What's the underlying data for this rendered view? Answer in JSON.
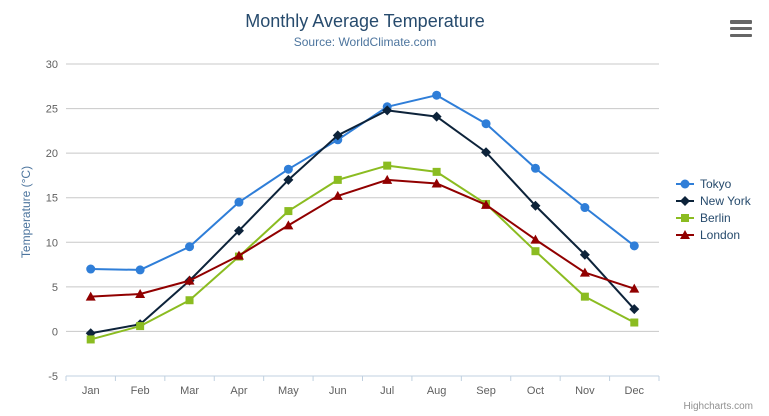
{
  "header": {
    "title": "Monthly Average Temperature",
    "subtitle": "Source: WorldClimate.com"
  },
  "credits": "Highcharts.com",
  "menu_icon": "hamburger-export-menu",
  "colors": {
    "title": "#274b6d",
    "subtitle": "#4d759e",
    "axis_title": "#4d759e",
    "axis_label": "#606060",
    "grid": "#c8c8c8",
    "axis_line": "#c0d0e0",
    "legend_text": "#274b6d",
    "credits": "#909090",
    "menu_icon": "#666666",
    "background": "#ffffff"
  },
  "chart_data": {
    "type": "line",
    "title": "Monthly Average Temperature",
    "subtitle": "Source: WorldClimate.com",
    "xlabel": "",
    "ylabel": "Temperature (°C)",
    "categories": [
      "Jan",
      "Feb",
      "Mar",
      "Apr",
      "May",
      "Jun",
      "Jul",
      "Aug",
      "Sep",
      "Oct",
      "Nov",
      "Dec"
    ],
    "ylim": [
      -5,
      30
    ],
    "ytick_step": 5,
    "grid": true,
    "legend_position": "right",
    "series": [
      {
        "name": "Tokyo",
        "color": "#2f7ed8",
        "marker": "circle",
        "values": [
          7.0,
          6.9,
          9.5,
          14.5,
          18.2,
          21.5,
          25.2,
          26.5,
          23.3,
          18.3,
          13.9,
          9.6
        ]
      },
      {
        "name": "New York",
        "color": "#0d233a",
        "marker": "diamond",
        "values": [
          -0.2,
          0.8,
          5.7,
          11.3,
          17.0,
          22.0,
          24.8,
          24.1,
          20.1,
          14.1,
          8.6,
          2.5
        ]
      },
      {
        "name": "Berlin",
        "color": "#8bbc21",
        "marker": "square",
        "values": [
          -0.9,
          0.6,
          3.5,
          8.4,
          13.5,
          17.0,
          18.6,
          17.9,
          14.3,
          9.0,
          3.9,
          1.0
        ]
      },
      {
        "name": "London",
        "color": "#910000",
        "marker": "triangle",
        "values": [
          3.9,
          4.2,
          5.7,
          8.5,
          11.9,
          15.2,
          17.0,
          16.6,
          14.2,
          10.3,
          6.6,
          4.8
        ]
      }
    ]
  }
}
